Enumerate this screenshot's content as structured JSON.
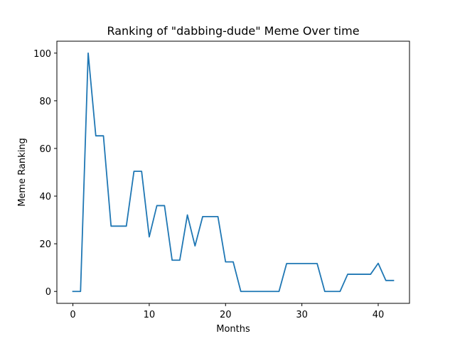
{
  "chart_data": {
    "type": "line",
    "title": "Ranking of \"dabbing-dude\" Meme Over time",
    "xlabel": "Months",
    "ylabel": "Meme Ranking",
    "xlim": [
      -2.1,
      44.1
    ],
    "ylim": [
      -5,
      105
    ],
    "xticks": [
      0,
      10,
      20,
      30,
      40
    ],
    "yticks": [
      0,
      20,
      40,
      60,
      80,
      100
    ],
    "grid": false,
    "line_color": "#1f77b4",
    "series": [
      {
        "name": "dabbing-dude",
        "x": [
          0,
          1,
          2,
          3,
          4,
          5,
          6,
          7,
          8,
          9,
          10,
          11,
          12,
          13,
          14,
          15,
          16,
          17,
          18,
          19,
          20,
          21,
          22,
          23,
          24,
          25,
          26,
          27,
          28,
          29,
          30,
          31,
          32,
          33,
          34,
          35,
          36,
          37,
          38,
          39,
          40,
          41,
          42
        ],
        "values": [
          0,
          0,
          100,
          65.3,
          65.3,
          27.4,
          27.4,
          27.4,
          50.4,
          50.4,
          22.9,
          36,
          36,
          13.1,
          13.1,
          32.1,
          19.1,
          31.4,
          31.4,
          31.4,
          12.4,
          12.4,
          0,
          0,
          0,
          0,
          0,
          0,
          11.7,
          11.7,
          11.7,
          11.7,
          11.7,
          0,
          0,
          0,
          7.2,
          7.2,
          7.2,
          7.2,
          11.8,
          4.6,
          4.6
        ]
      }
    ]
  }
}
